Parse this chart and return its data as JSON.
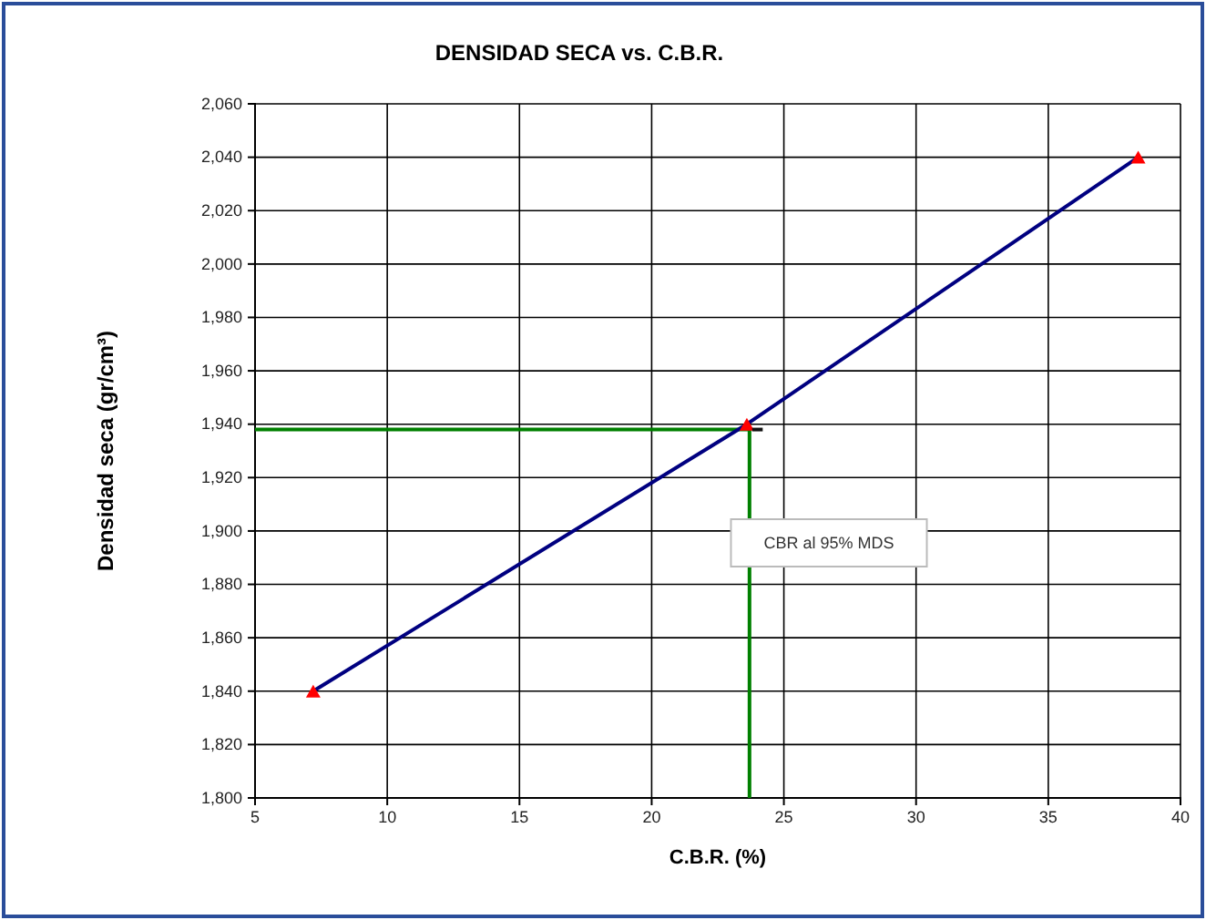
{
  "chart_data": {
    "type": "line",
    "title": "DENSIDAD SECA vs. C.B.R.",
    "xlabel": "C.B.R. (%)",
    "ylabel": "Densidad seca (gr/cm³)",
    "x": [
      7.2,
      23.6,
      38.4
    ],
    "series": [
      {
        "color": "#000080",
        "values": [
          1840,
          1940,
          2040
        ],
        "marker": "none"
      },
      {
        "type": "scatter",
        "color": "#ff0000",
        "values": [
          1840,
          1940,
          2040
        ],
        "marker": "triangle"
      },
      {
        "color": "#111111",
        "x": [
          23.8,
          24.2
        ],
        "values": [
          1938,
          1938
        ],
        "marker": "none"
      }
    ],
    "ref_lines": [
      {
        "axis": "y",
        "value": 1938,
        "color": "#008000"
      },
      {
        "axis": "x",
        "value": 23.7,
        "color": "#008000"
      }
    ],
    "annotations": [
      "CBR  al 95% MDS"
    ],
    "xlim": [
      5,
      40
    ],
    "xticks": [
      5,
      10,
      15,
      20,
      25,
      30,
      35,
      40
    ],
    "ylim": [
      1800,
      2060
    ],
    "yticks": [
      {
        "value": 1800,
        "label": "1,800"
      },
      {
        "value": 1820,
        "label": "1,820"
      },
      {
        "value": 1840,
        "label": "1,840"
      },
      {
        "value": 1860,
        "label": "1,860"
      },
      {
        "value": 1880,
        "label": "1,880"
      },
      {
        "value": 1900,
        "label": "1,900"
      },
      {
        "value": 1920,
        "label": "1,920"
      },
      {
        "value": 1940,
        "label": "1,940"
      },
      {
        "value": 1960,
        "label": "1,960"
      },
      {
        "value": 1980,
        "label": "1,980"
      },
      {
        "value": 2000,
        "label": "2,000"
      },
      {
        "value": 2020,
        "label": "2,020"
      },
      {
        "value": 2040,
        "label": "2,040"
      },
      {
        "value": 2060,
        "label": "2,060"
      }
    ],
    "grid": true,
    "legend": false
  }
}
